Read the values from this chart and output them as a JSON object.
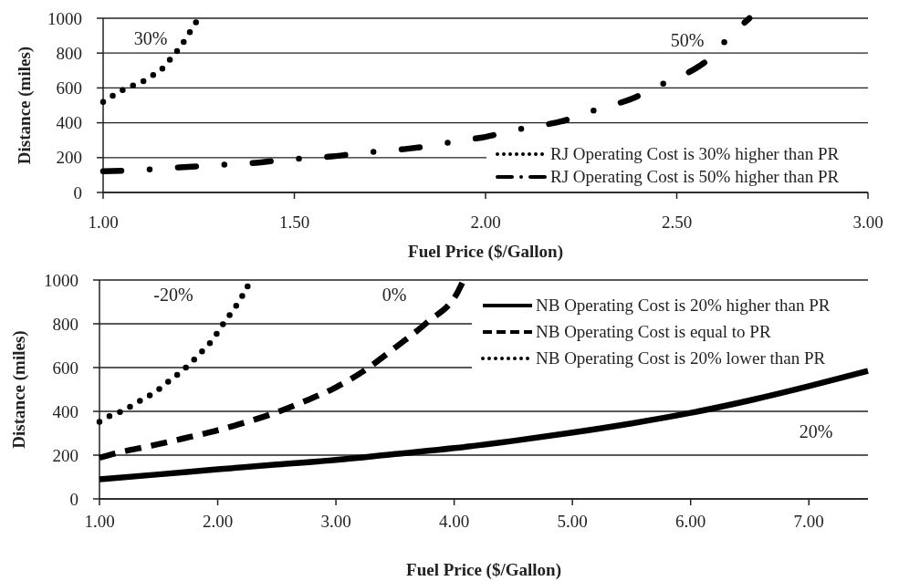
{
  "chart_data": [
    {
      "type": "line",
      "xlabel": "Fuel Price ($/Gallon)",
      "ylabel": "Distance (miles)",
      "xlim": [
        1,
        3
      ],
      "xticks": [
        {
          "value": 1,
          "label": "1.00"
        },
        {
          "value": 1.5,
          "label": "1.50"
        },
        {
          "value": 2,
          "label": "2.00"
        },
        {
          "value": 2.5,
          "label": "2.50"
        },
        {
          "value": 3,
          "label": "3.00"
        }
      ],
      "ylim": [
        0,
        1000
      ],
      "yticks": [
        0,
        200,
        400,
        600,
        800,
        1000
      ],
      "grid": "y",
      "legend": "bottom right",
      "series": [
        {
          "name": "RJ Operating Cost is 30% higher than PR",
          "color": "#000000",
          "line_style": "dotted",
          "x": [
            1.0,
            1.03,
            1.06,
            1.1,
            1.13,
            1.16,
            1.18,
            1.2,
            1.22,
            1.24,
            1.25
          ],
          "values": [
            519,
            561,
            598,
            633,
            673,
            722,
            778,
            830,
            897,
            967,
            1000
          ]
        },
        {
          "name": "RJ Operating Cost is 50% higher than PR",
          "color": "#000000",
          "line_style": "dashdot",
          "x": [
            1.0,
            1.06,
            1.13,
            1.2,
            1.26,
            1.33,
            1.4,
            1.46,
            1.53,
            1.59,
            1.66,
            1.72,
            1.8,
            1.87,
            1.93,
            2.0,
            2.06,
            2.13,
            2.2,
            2.26,
            2.32,
            2.39,
            2.45,
            2.52,
            2.58,
            2.64,
            2.69
          ],
          "values": [
            122,
            125,
            133,
            144,
            152,
            161,
            170,
            184,
            196,
            205,
            222,
            236,
            252,
            272,
            297,
            319,
            350,
            380,
            409,
            455,
            493,
            545,
            610,
            676,
            759,
            899,
            1000
          ]
        }
      ],
      "annotations": [
        "30%",
        "50%"
      ]
    },
    {
      "type": "line",
      "xlabel": "Fuel Price ($/Gallon)",
      "ylabel": "Distance (miles)",
      "xlim": [
        1,
        7.5
      ],
      "xticks": [
        {
          "value": 1,
          "label": "1.00"
        },
        {
          "value": 2,
          "label": "2.00"
        },
        {
          "value": 3,
          "label": "3.00"
        },
        {
          "value": 4,
          "label": "4.00"
        },
        {
          "value": 5,
          "label": "5.00"
        },
        {
          "value": 6,
          "label": "6.00"
        },
        {
          "value": 7,
          "label": "7.00"
        }
      ],
      "ylim": [
        0,
        1000
      ],
      "yticks": [
        0,
        200,
        400,
        600,
        800,
        1000
      ],
      "grid": "y",
      "legend": "top right",
      "series": [
        {
          "name": "NB Operating Cost is 20% higher than PR",
          "color": "#000000",
          "line_style": "solid",
          "x": [
            1,
            1.5,
            2,
            2.5,
            3,
            3.5,
            4,
            4.5,
            5,
            5.5,
            6,
            6.5,
            7,
            7.5
          ],
          "values": [
            90,
            112,
            135,
            157,
            178,
            205,
            232,
            265,
            303,
            345,
            393,
            450,
            515,
            585
          ]
        },
        {
          "name": "NB Operating Cost is equal to PR",
          "color": "#000000",
          "line_style": "dashed",
          "x": [
            1.0,
            1.19,
            1.44,
            1.7,
            1.96,
            2.22,
            2.48,
            2.73,
            2.99,
            3.25,
            3.51,
            3.77,
            4.03,
            4.08
          ],
          "values": [
            188,
            215,
            243,
            275,
            308,
            347,
            392,
            445,
            507,
            590,
            695,
            806,
            945,
            1000
          ]
        },
        {
          "name": "NB Operating Cost is 20% lower than PR",
          "color": "#000000",
          "line_style": "dotted",
          "x": [
            1.0,
            1.1,
            1.2,
            1.3,
            1.4,
            1.5,
            1.59,
            1.69,
            1.78,
            1.88,
            1.96,
            2.0,
            2.06,
            2.13,
            2.2,
            2.26,
            2.27
          ],
          "values": [
            352,
            382,
            403,
            435,
            465,
            500,
            539,
            581,
            625,
            681,
            729,
            761,
            810,
            861,
            920,
            982,
            1000
          ]
        }
      ],
      "annotations": [
        "-20%",
        "0%",
        "20%"
      ]
    }
  ]
}
